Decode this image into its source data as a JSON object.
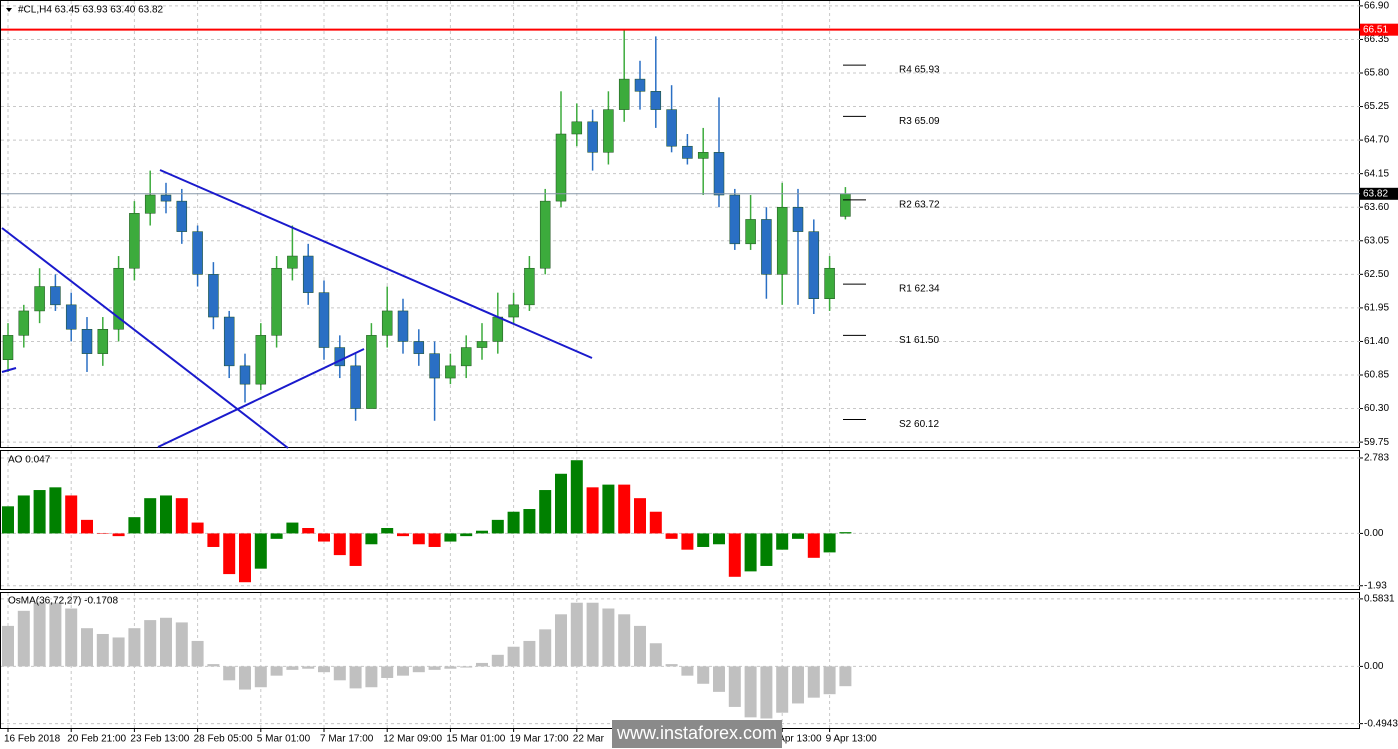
{
  "watermark": "www.instaforex.com",
  "chart_data": [
    {
      "type": "candlestick",
      "title": "#CL,H4  63.45 63.93 63.40 63.82",
      "categories": [
        "16 Feb 2018",
        null,
        null,
        null,
        "20 Feb 21:00",
        null,
        null,
        null,
        "23 Feb 13:00",
        null,
        null,
        null,
        "28 Feb 05:00",
        null,
        null,
        null,
        "5 Mar 01:00",
        null,
        null,
        null,
        "7 Mar 17:00",
        null,
        null,
        null,
        "12 Mar 09:00",
        null,
        null,
        null,
        "15 Mar 01:00",
        null,
        null,
        null,
        "19 Mar 17:00",
        null,
        null,
        null,
        "22 Mar",
        null,
        null,
        null,
        null,
        null,
        null,
        null,
        null,
        null,
        null,
        null,
        null,
        "Apr 13:00",
        null,
        null,
        "9 Apr 13:00",
        null
      ],
      "open": [
        61.1,
        61.5,
        61.9,
        62.3,
        62.0,
        61.6,
        61.2,
        61.6,
        62.6,
        63.5,
        63.8,
        63.7,
        63.2,
        62.5,
        61.8,
        61.0,
        60.7,
        61.5,
        62.6,
        62.8,
        62.2,
        61.3,
        61.0,
        60.3,
        61.5,
        61.9,
        61.4,
        61.2,
        60.8,
        61.0,
        61.3,
        61.4,
        61.8,
        62.0,
        62.6,
        63.7,
        64.8,
        65.0,
        64.5,
        65.2,
        65.7,
        65.5,
        65.2,
        64.6,
        64.4,
        64.5,
        63.8,
        63.0,
        63.4,
        62.5,
        63.6,
        63.2,
        62.1,
        63.45
      ],
      "high": [
        61.7,
        62.0,
        62.6,
        62.5,
        62.2,
        61.8,
        61.8,
        62.8,
        63.7,
        64.2,
        64.0,
        63.9,
        63.3,
        62.7,
        61.9,
        61.2,
        61.7,
        62.8,
        63.3,
        63.0,
        62.4,
        61.5,
        61.2,
        61.7,
        62.3,
        62.1,
        61.6,
        61.4,
        61.2,
        61.5,
        61.7,
        62.2,
        62.2,
        62.8,
        63.9,
        65.5,
        65.3,
        65.2,
        65.5,
        66.5,
        66.0,
        66.4,
        65.6,
        64.8,
        64.9,
        65.4,
        63.9,
        63.8,
        63.6,
        64.0,
        63.9,
        63.4,
        62.8,
        63.93
      ],
      "low": [
        60.9,
        61.3,
        61.7,
        61.9,
        61.4,
        60.9,
        61.0,
        61.4,
        62.4,
        63.3,
        63.5,
        63.0,
        62.3,
        61.6,
        60.8,
        60.4,
        60.6,
        61.3,
        62.4,
        62.0,
        61.1,
        60.8,
        60.1,
        60.3,
        61.3,
        61.2,
        61.0,
        60.1,
        60.7,
        60.8,
        61.1,
        61.2,
        61.7,
        61.9,
        62.5,
        63.6,
        64.6,
        64.2,
        64.3,
        65.0,
        65.2,
        64.9,
        64.5,
        64.3,
        63.8,
        63.6,
        62.9,
        62.9,
        62.1,
        62.0,
        62.0,
        61.85,
        61.9,
        63.4
      ],
      "close": [
        61.5,
        61.9,
        62.3,
        62.0,
        61.6,
        61.2,
        61.6,
        62.6,
        63.5,
        63.8,
        63.7,
        63.2,
        62.5,
        61.8,
        61.0,
        60.7,
        61.5,
        62.6,
        62.8,
        62.2,
        61.3,
        61.0,
        60.3,
        61.5,
        61.9,
        61.4,
        61.2,
        60.8,
        61.0,
        61.3,
        61.4,
        61.8,
        62.0,
        62.6,
        63.7,
        64.8,
        65.0,
        64.5,
        65.2,
        65.7,
        65.5,
        65.2,
        64.6,
        64.4,
        64.5,
        63.8,
        63.0,
        63.4,
        62.5,
        63.6,
        63.2,
        62.1,
        62.6,
        63.82
      ],
      "up_color": "#3cab3c",
      "down_color": "#2a6fc4",
      "ylim": [
        59.67,
        66.98
      ],
      "yticks": [
        {
          "value": 66.9,
          "label": "66.90"
        },
        66.35,
        {
          "value": 65.8,
          "label": "65.80"
        },
        65.25,
        {
          "value": 64.7,
          "label": "64.70"
        },
        64.15,
        {
          "value": 63.6,
          "label": "63.60"
        },
        63.05,
        {
          "value": 62.5,
          "label": "62.50"
        },
        61.95,
        {
          "value": 61.4,
          "label": "61.40"
        },
        60.85,
        {
          "value": 60.3,
          "label": "60.30"
        },
        59.75
      ],
      "grid": true,
      "levels": [
        {
          "value": 66.51,
          "label": "66.51",
          "color": "#ff0000"
        },
        {
          "value": 63.82,
          "label": "63.82",
          "color": "#000000"
        }
      ],
      "pivots": [
        {
          "value": 65.93,
          "label": "R4 65.93"
        },
        {
          "value": 65.09,
          "label": "R3 65.09"
        },
        {
          "value": 63.72,
          "label": "R2 63.72"
        },
        {
          "value": 62.34,
          "label": "R1 62.34"
        },
        {
          "value": 61.5,
          "label": "S1 61.50"
        },
        {
          "value": 60.12,
          "label": "S2 60.12"
        }
      ]
    },
    {
      "type": "bar",
      "title": "AO 0.047",
      "values": [
        1.0,
        1.4,
        1.6,
        1.7,
        1.4,
        0.5,
        0.0,
        -0.1,
        0.6,
        1.3,
        1.4,
        1.3,
        0.4,
        -0.5,
        -1.5,
        -1.8,
        -1.3,
        -0.2,
        0.4,
        0.2,
        -0.3,
        -0.8,
        -1.2,
        -0.4,
        0.2,
        -0.1,
        -0.4,
        -0.5,
        -0.3,
        -0.1,
        0.1,
        0.5,
        0.8,
        0.9,
        1.6,
        2.2,
        2.7,
        1.7,
        1.8,
        1.8,
        1.3,
        0.8,
        -0.2,
        -0.6,
        -0.5,
        -0.4,
        -1.6,
        -1.4,
        -1.2,
        -0.6,
        -0.2,
        -0.9,
        -0.7,
        0.047
      ],
      "up_color": "#008000",
      "down_color": "#ff0000",
      "ylim": [
        -2.05,
        3.04
      ],
      "yticks": [
        2.783,
        {
          "value": 0,
          "label": "0.00"
        },
        -1.93
      ],
      "grid": true
    },
    {
      "type": "bar",
      "title": "OsMA(36,72,27) -0.1708",
      "values": [
        0.35,
        0.48,
        0.55,
        0.55,
        0.5,
        0.33,
        0.28,
        0.25,
        0.33,
        0.4,
        0.42,
        0.38,
        0.22,
        0.02,
        -0.12,
        -0.2,
        -0.18,
        -0.08,
        -0.03,
        -0.02,
        -0.05,
        -0.12,
        -0.19,
        -0.18,
        -0.1,
        -0.08,
        -0.05,
        -0.03,
        -0.02,
        -0.01,
        0.03,
        0.1,
        0.17,
        0.22,
        0.32,
        0.45,
        0.55,
        0.55,
        0.5,
        0.45,
        0.35,
        0.2,
        0.02,
        -0.08,
        -0.15,
        -0.22,
        -0.35,
        -0.44,
        -0.45,
        -0.4,
        -0.32,
        -0.27,
        -0.24,
        -0.1708
      ],
      "color": "#c0c0c0",
      "ylim": [
        -0.532,
        0.634
      ],
      "yticks": [
        0.5831,
        {
          "value": 0,
          "label": "0.00"
        },
        -0.4943
      ],
      "grid": true
    }
  ]
}
